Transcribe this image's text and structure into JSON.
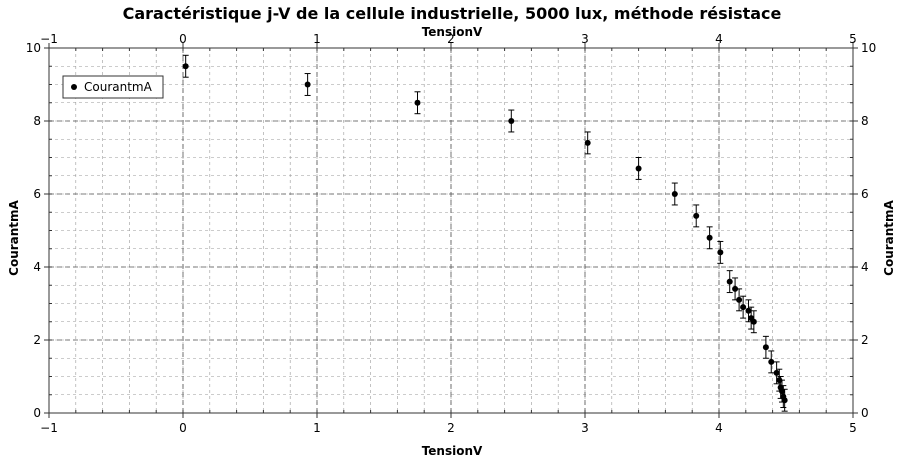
{
  "chart_data": {
    "type": "scatter",
    "title": "Caractéristique j-V de la cellule industrielle, 5000 lux, méthode résistace",
    "xlabel": "TensionV",
    "ylabel": "CourantmA",
    "xlim": [
      -1,
      5
    ],
    "ylim": [
      0,
      10
    ],
    "x_ticks": [
      "−1",
      "0",
      "1",
      "2",
      "3",
      "4",
      "5"
    ],
    "y_ticks": [
      "0",
      "2",
      "4",
      "6",
      "8",
      "10"
    ],
    "grid": true,
    "legend_position": "top-left",
    "series": [
      {
        "name": "CourantmA",
        "marker": "circle",
        "color": "#000000",
        "error_bar": 0.3,
        "x": [
          0.02,
          0.93,
          1.75,
          2.45,
          3.02,
          3.4,
          3.67,
          3.83,
          3.93,
          4.01,
          4.08,
          4.12,
          4.15,
          4.18,
          4.22,
          4.24,
          4.26,
          4.35,
          4.39,
          4.43,
          4.45,
          4.46,
          4.47,
          4.48,
          4.49
        ],
        "y": [
          9.5,
          9.0,
          8.5,
          8.0,
          7.4,
          6.7,
          6.0,
          5.4,
          4.8,
          4.4,
          3.6,
          3.4,
          3.1,
          2.9,
          2.8,
          2.6,
          2.5,
          1.8,
          1.4,
          1.1,
          0.9,
          0.7,
          0.6,
          0.45,
          0.35
        ]
      }
    ]
  }
}
